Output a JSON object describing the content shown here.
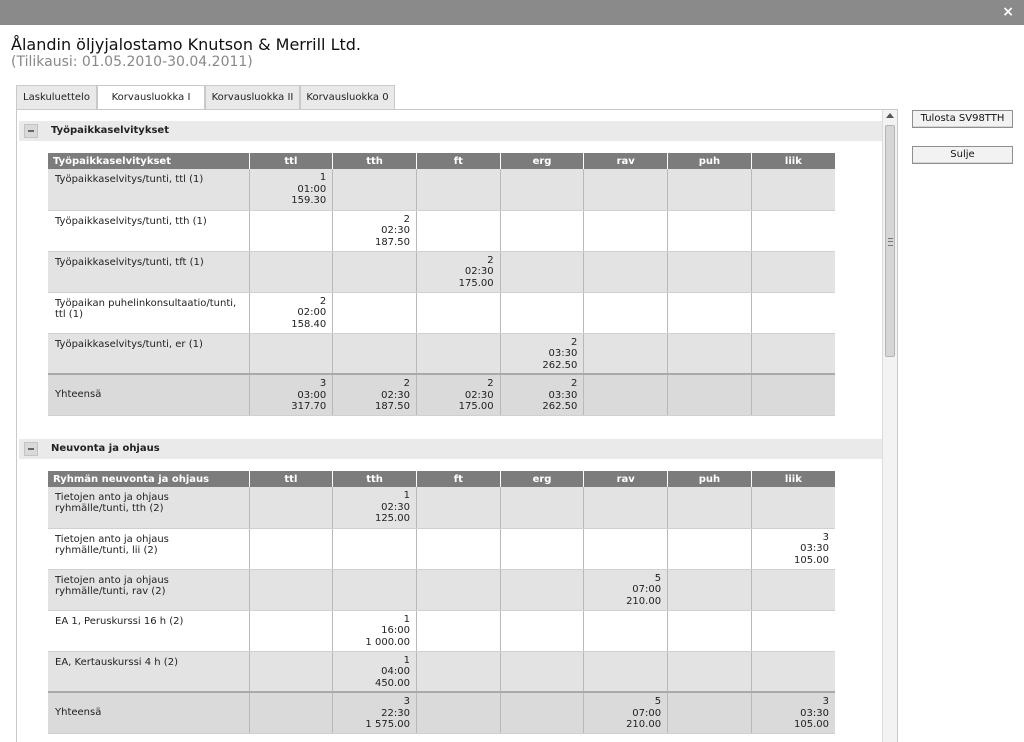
{
  "window": {
    "close_glyph": "×"
  },
  "header": {
    "title": "Ålandin öljyjalostamo Knutson & Merrill Ltd.",
    "subtitle": "(Tilikausi: 01.05.2010-30.04.2011)"
  },
  "tabs": [
    {
      "label": "Laskuluettelo",
      "active": false
    },
    {
      "label": "Korvausluokka I",
      "active": true
    },
    {
      "label": "Korvausluokka II",
      "active": false
    },
    {
      "label": "Korvausluokka 0",
      "active": false
    }
  ],
  "side_buttons": {
    "print": "Tulosta SV98TTH",
    "close": "Sulje"
  },
  "columns": [
    "ttl",
    "tth",
    "ft",
    "erg",
    "rav",
    "puh",
    "liik"
  ],
  "sections": [
    {
      "title": "Työpaikkaselvitykset",
      "table_header": "Työpaikkaselvitykset",
      "rows": [
        {
          "label": "Työpaikkaselvitys/tunti, ttl (1)",
          "cells": [
            [
              "1",
              "01:00",
              "159.30"
            ],
            null,
            null,
            null,
            null,
            null,
            null
          ]
        },
        {
          "label": "Työpaikkaselvitys/tunti, tth (1)",
          "cells": [
            null,
            [
              "2",
              "02:30",
              "187.50"
            ],
            null,
            null,
            null,
            null,
            null
          ]
        },
        {
          "label": "Työpaikkaselvitys/tunti, tft (1)",
          "cells": [
            null,
            null,
            [
              "2",
              "02:30",
              "175.00"
            ],
            null,
            null,
            null,
            null
          ]
        },
        {
          "label": "Työpaikan puhelinkonsultaatio/tunti, ttl (1)",
          "cells": [
            [
              "2",
              "02:00",
              "158.40"
            ],
            null,
            null,
            null,
            null,
            null,
            null
          ]
        },
        {
          "label": "Työpaikkaselvitys/tunti, er (1)",
          "cells": [
            null,
            null,
            null,
            [
              "2",
              "03:30",
              "262.50"
            ],
            null,
            null,
            null
          ]
        }
      ],
      "total": {
        "label": "Yhteensä",
        "cells": [
          [
            "3",
            "03:00",
            "317.70"
          ],
          [
            "2",
            "02:30",
            "187.50"
          ],
          [
            "2",
            "02:30",
            "175.00"
          ],
          [
            "2",
            "03:30",
            "262.50"
          ],
          null,
          null,
          null
        ]
      }
    },
    {
      "title": "Neuvonta ja ohjaus",
      "table_header": "Ryhmän neuvonta ja ohjaus",
      "rows": [
        {
          "label": "Tietojen anto ja ohjaus ryhmälle/tunti, tth (2)",
          "cells": [
            null,
            [
              "1",
              "02:30",
              "125.00"
            ],
            null,
            null,
            null,
            null,
            null
          ]
        },
        {
          "label": "Tietojen anto ja ohjaus ryhmälle/tunti, lii (2)",
          "cells": [
            null,
            null,
            null,
            null,
            null,
            null,
            [
              "3",
              "03:30",
              "105.00"
            ]
          ]
        },
        {
          "label": "Tietojen anto ja ohjaus ryhmälle/tunti, rav (2)",
          "cells": [
            null,
            null,
            null,
            null,
            [
              "5",
              "07:00",
              "210.00"
            ],
            null,
            null
          ]
        },
        {
          "label": "EA 1, Peruskurssi 16 h (2)",
          "cells": [
            null,
            [
              "1",
              "16:00",
              "1 000.00"
            ],
            null,
            null,
            null,
            null,
            null
          ]
        },
        {
          "label": "EA, Kertauskurssi 4 h (2)",
          "cells": [
            null,
            [
              "1",
              "04:00",
              "450.00"
            ],
            null,
            null,
            null,
            null,
            null
          ]
        }
      ],
      "total": {
        "label": "Yhteensä",
        "cells": [
          null,
          [
            "3",
            "22:30",
            "1 575.00"
          ],
          null,
          null,
          [
            "5",
            "07:00",
            "210.00"
          ],
          null,
          [
            "3",
            "03:30",
            "105.00"
          ]
        ]
      }
    }
  ],
  "icons": {
    "close": "close-icon",
    "collapse": "minus-icon",
    "scroll_up": "arrow-up-icon",
    "scroll_grip": "grip-icon"
  }
}
